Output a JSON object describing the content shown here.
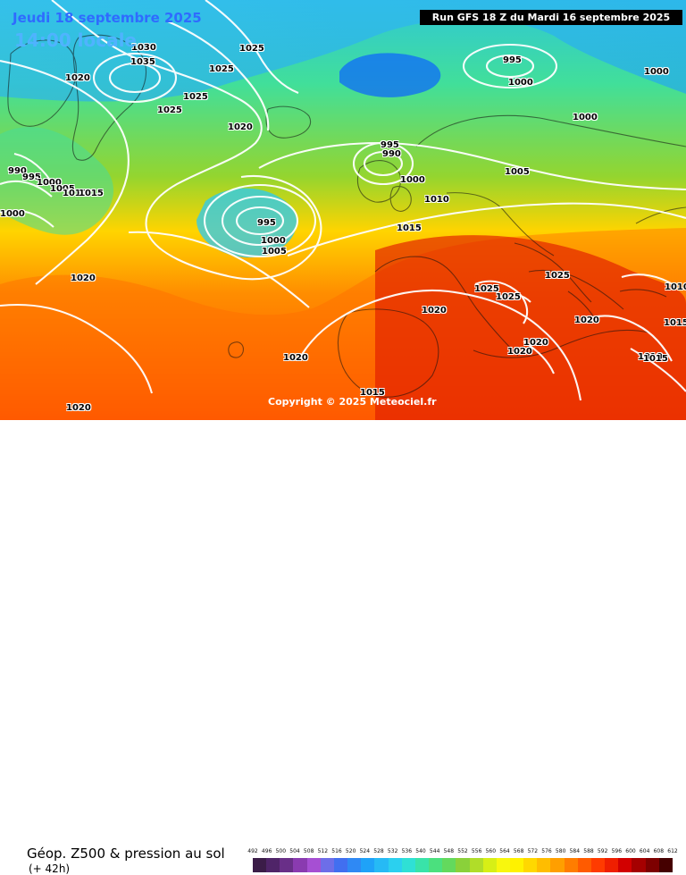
{
  "header": {
    "date": "Jeudi 18 septembre 2025",
    "time": "14:00 locale",
    "run": "Run GFS 18 Z du Mardi 16 septembre 2025"
  },
  "footer": {
    "title": "Géop. Z500 & pression au sol",
    "subtitle": "(+ 42h)",
    "copyright": "Copyright © 2025 Meteociel.fr"
  },
  "legend": {
    "ticks": [
      "492",
      "496",
      "500",
      "504",
      "508",
      "512",
      "516",
      "520",
      "524",
      "528",
      "532",
      "536",
      "540",
      "544",
      "548",
      "552",
      "556",
      "560",
      "564",
      "568",
      "572",
      "576",
      "580",
      "584",
      "588",
      "592",
      "596",
      "600",
      "604",
      "608",
      "612"
    ],
    "colors": [
      "#3b1c48",
      "#4f2468",
      "#692f88",
      "#8a3bb0",
      "#a64fd3",
      "#6d6ee8",
      "#416ff0",
      "#2f89f4",
      "#1fa2f8",
      "#26baf5",
      "#2bd0ef",
      "#2fe0d5",
      "#39e3a9",
      "#4be07e",
      "#63d95d",
      "#8ad13a",
      "#b0dd29",
      "#d7ef16",
      "#f8f70e",
      "#fff200",
      "#ffd800",
      "#ffbd00",
      "#ff9f00",
      "#ff7d00",
      "#ff5b00",
      "#ff3b00",
      "#ef1f00",
      "#d20000",
      "#a50000",
      "#7d0000",
      "#450000"
    ]
  },
  "map": {
    "isobar_labels": [
      {
        "text": "1030"
      },
      {
        "text": "1035"
      },
      {
        "text": "1025"
      },
      {
        "text": "1025"
      },
      {
        "text": "1025"
      },
      {
        "text": "1025"
      },
      {
        "text": "1020"
      },
      {
        "text": "1020"
      },
      {
        "text": "995"
      },
      {
        "text": "1000"
      },
      {
        "text": "995"
      },
      {
        "text": "990"
      },
      {
        "text": "1000"
      },
      {
        "text": "1000"
      },
      {
        "text": "1000"
      },
      {
        "text": "1005"
      },
      {
        "text": "1010"
      },
      {
        "text": "1015"
      },
      {
        "text": "995"
      },
      {
        "text": "1000"
      },
      {
        "text": "1005"
      },
      {
        "text": "1015"
      },
      {
        "text": "1020"
      },
      {
        "text": "1020"
      },
      {
        "text": "1020"
      },
      {
        "text": "1015"
      },
      {
        "text": "1025"
      },
      {
        "text": "1025"
      },
      {
        "text": "1025"
      },
      {
        "text": "1020"
      },
      {
        "text": "1020"
      },
      {
        "text": "1020"
      },
      {
        "text": "1010"
      },
      {
        "text": "1015"
      },
      {
        "text": "1010"
      },
      {
        "text": "990"
      },
      {
        "text": "995"
      },
      {
        "text": "1000"
      },
      {
        "text": "1005"
      },
      {
        "text": "1010"
      },
      {
        "text": "1015"
      },
      {
        "text": "1020"
      },
      {
        "text": "1015"
      },
      {
        "text": "1000"
      }
    ]
  }
}
